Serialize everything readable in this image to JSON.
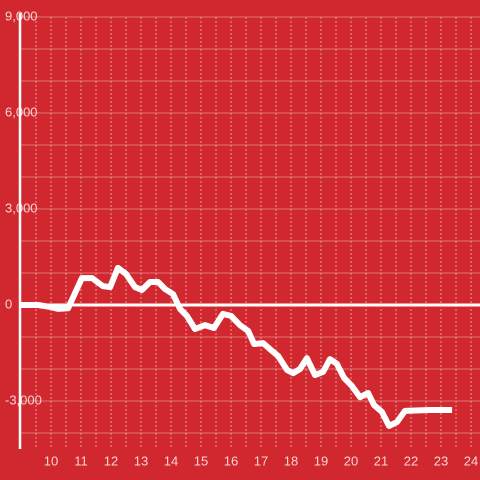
{
  "chart_data": {
    "type": "line",
    "x": [
      9.0,
      9.57,
      9.97,
      10.23,
      10.57,
      11.03,
      11.37,
      11.73,
      11.97,
      12.23,
      12.5,
      12.8,
      13.03,
      13.3,
      13.57,
      13.8,
      14.07,
      14.3,
      14.53,
      14.8,
      15.13,
      15.43,
      15.73,
      16.0,
      16.3,
      16.57,
      16.77,
      17.07,
      17.3,
      17.57,
      17.87,
      18.07,
      18.3,
      18.53,
      18.8,
      19.07,
      19.3,
      19.53,
      19.77,
      20.03,
      20.3,
      20.57,
      20.77,
      21.03,
      21.27,
      21.53,
      21.8,
      22.63,
      23.37
    ],
    "series": [
      {
        "color": "#ffffff",
        "values": [
          0,
          0,
          -60,
          -120,
          -100,
          840,
          840,
          590,
          560,
          1160,
          970,
          560,
          470,
          720,
          720,
          500,
          340,
          -120,
          -340,
          -750,
          -630,
          -720,
          -280,
          -340,
          -630,
          -810,
          -1220,
          -1190,
          -1380,
          -1590,
          -2030,
          -2130,
          -2000,
          -1660,
          -2190,
          -2090,
          -1690,
          -1840,
          -2280,
          -2530,
          -2880,
          -2750,
          -3130,
          -3340,
          -3780,
          -3660,
          -3310,
          -3280,
          -3280
        ]
      }
    ],
    "xlim": [
      9,
      24.3
    ],
    "ylim": [
      -4500,
      9000
    ],
    "xticks": [
      10,
      11,
      12,
      13,
      14,
      15,
      16,
      17,
      18,
      19,
      20,
      21,
      22,
      23,
      24
    ],
    "x_minor_ticks": [
      9.5,
      10.5,
      11.5,
      12.5,
      13.5,
      14.5,
      15.5,
      16.5,
      17.5,
      18.5,
      19.5,
      20.5,
      21.5,
      22.5,
      23.5
    ],
    "yticks": [
      {
        "value": 9000,
        "label": "9,000"
      },
      {
        "value": 6000,
        "label": "6,000"
      },
      {
        "value": 3000,
        "label": "3,000"
      },
      0,
      {
        "value": -3000,
        "label": "-3,000"
      }
    ],
    "y_minor_ticks": [
      8000,
      7000,
      5000,
      4000,
      2000,
      1000,
      -1000,
      -2000,
      -4000
    ],
    "grid": true
  }
}
